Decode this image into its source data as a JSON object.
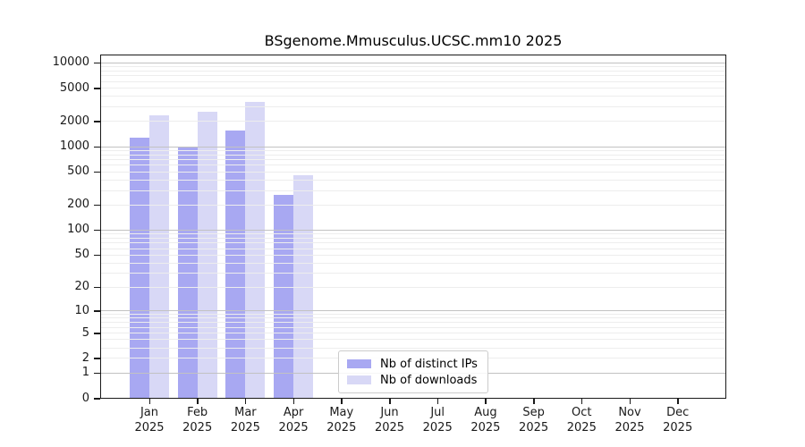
{
  "chart_data": {
    "type": "bar",
    "title": "BSgenome.Mmusculus.UCSC.mm10 2025",
    "months": [
      "Jan",
      "Feb",
      "Mar",
      "Apr",
      "May",
      "Jun",
      "Jul",
      "Aug",
      "Sep",
      "Oct",
      "Nov",
      "Dec"
    ],
    "year": "2025",
    "series": [
      {
        "name": "Nb of distinct IPs",
        "color": "#a8a8f2",
        "values": [
          1250,
          1000,
          1550,
          265,
          null,
          null,
          null,
          null,
          null,
          null,
          null,
          null
        ]
      },
      {
        "name": "Nb of downloads",
        "color": "#d8d8f6",
        "values": [
          2350,
          2550,
          3400,
          450,
          null,
          null,
          null,
          null,
          null,
          null,
          null,
          null
        ]
      }
    ],
    "y_axis": {
      "scale": "log10(1+value)",
      "tick_labels": [
        10000,
        5000,
        2000,
        1000,
        500,
        200,
        100,
        50,
        20,
        10,
        5,
        2,
        1,
        0
      ],
      "ylim": [
        0,
        12200
      ],
      "grid_major_at": [
        1,
        10,
        100,
        1000,
        10000
      ],
      "grid_minor_multipliers": [
        2,
        3,
        4,
        5,
        6,
        7,
        8,
        9
      ]
    },
    "legend": {
      "entries": [
        "Nb of distinct IPs",
        "Nb of downloads"
      ],
      "position": "bottom-center"
    },
    "grid": true
  }
}
